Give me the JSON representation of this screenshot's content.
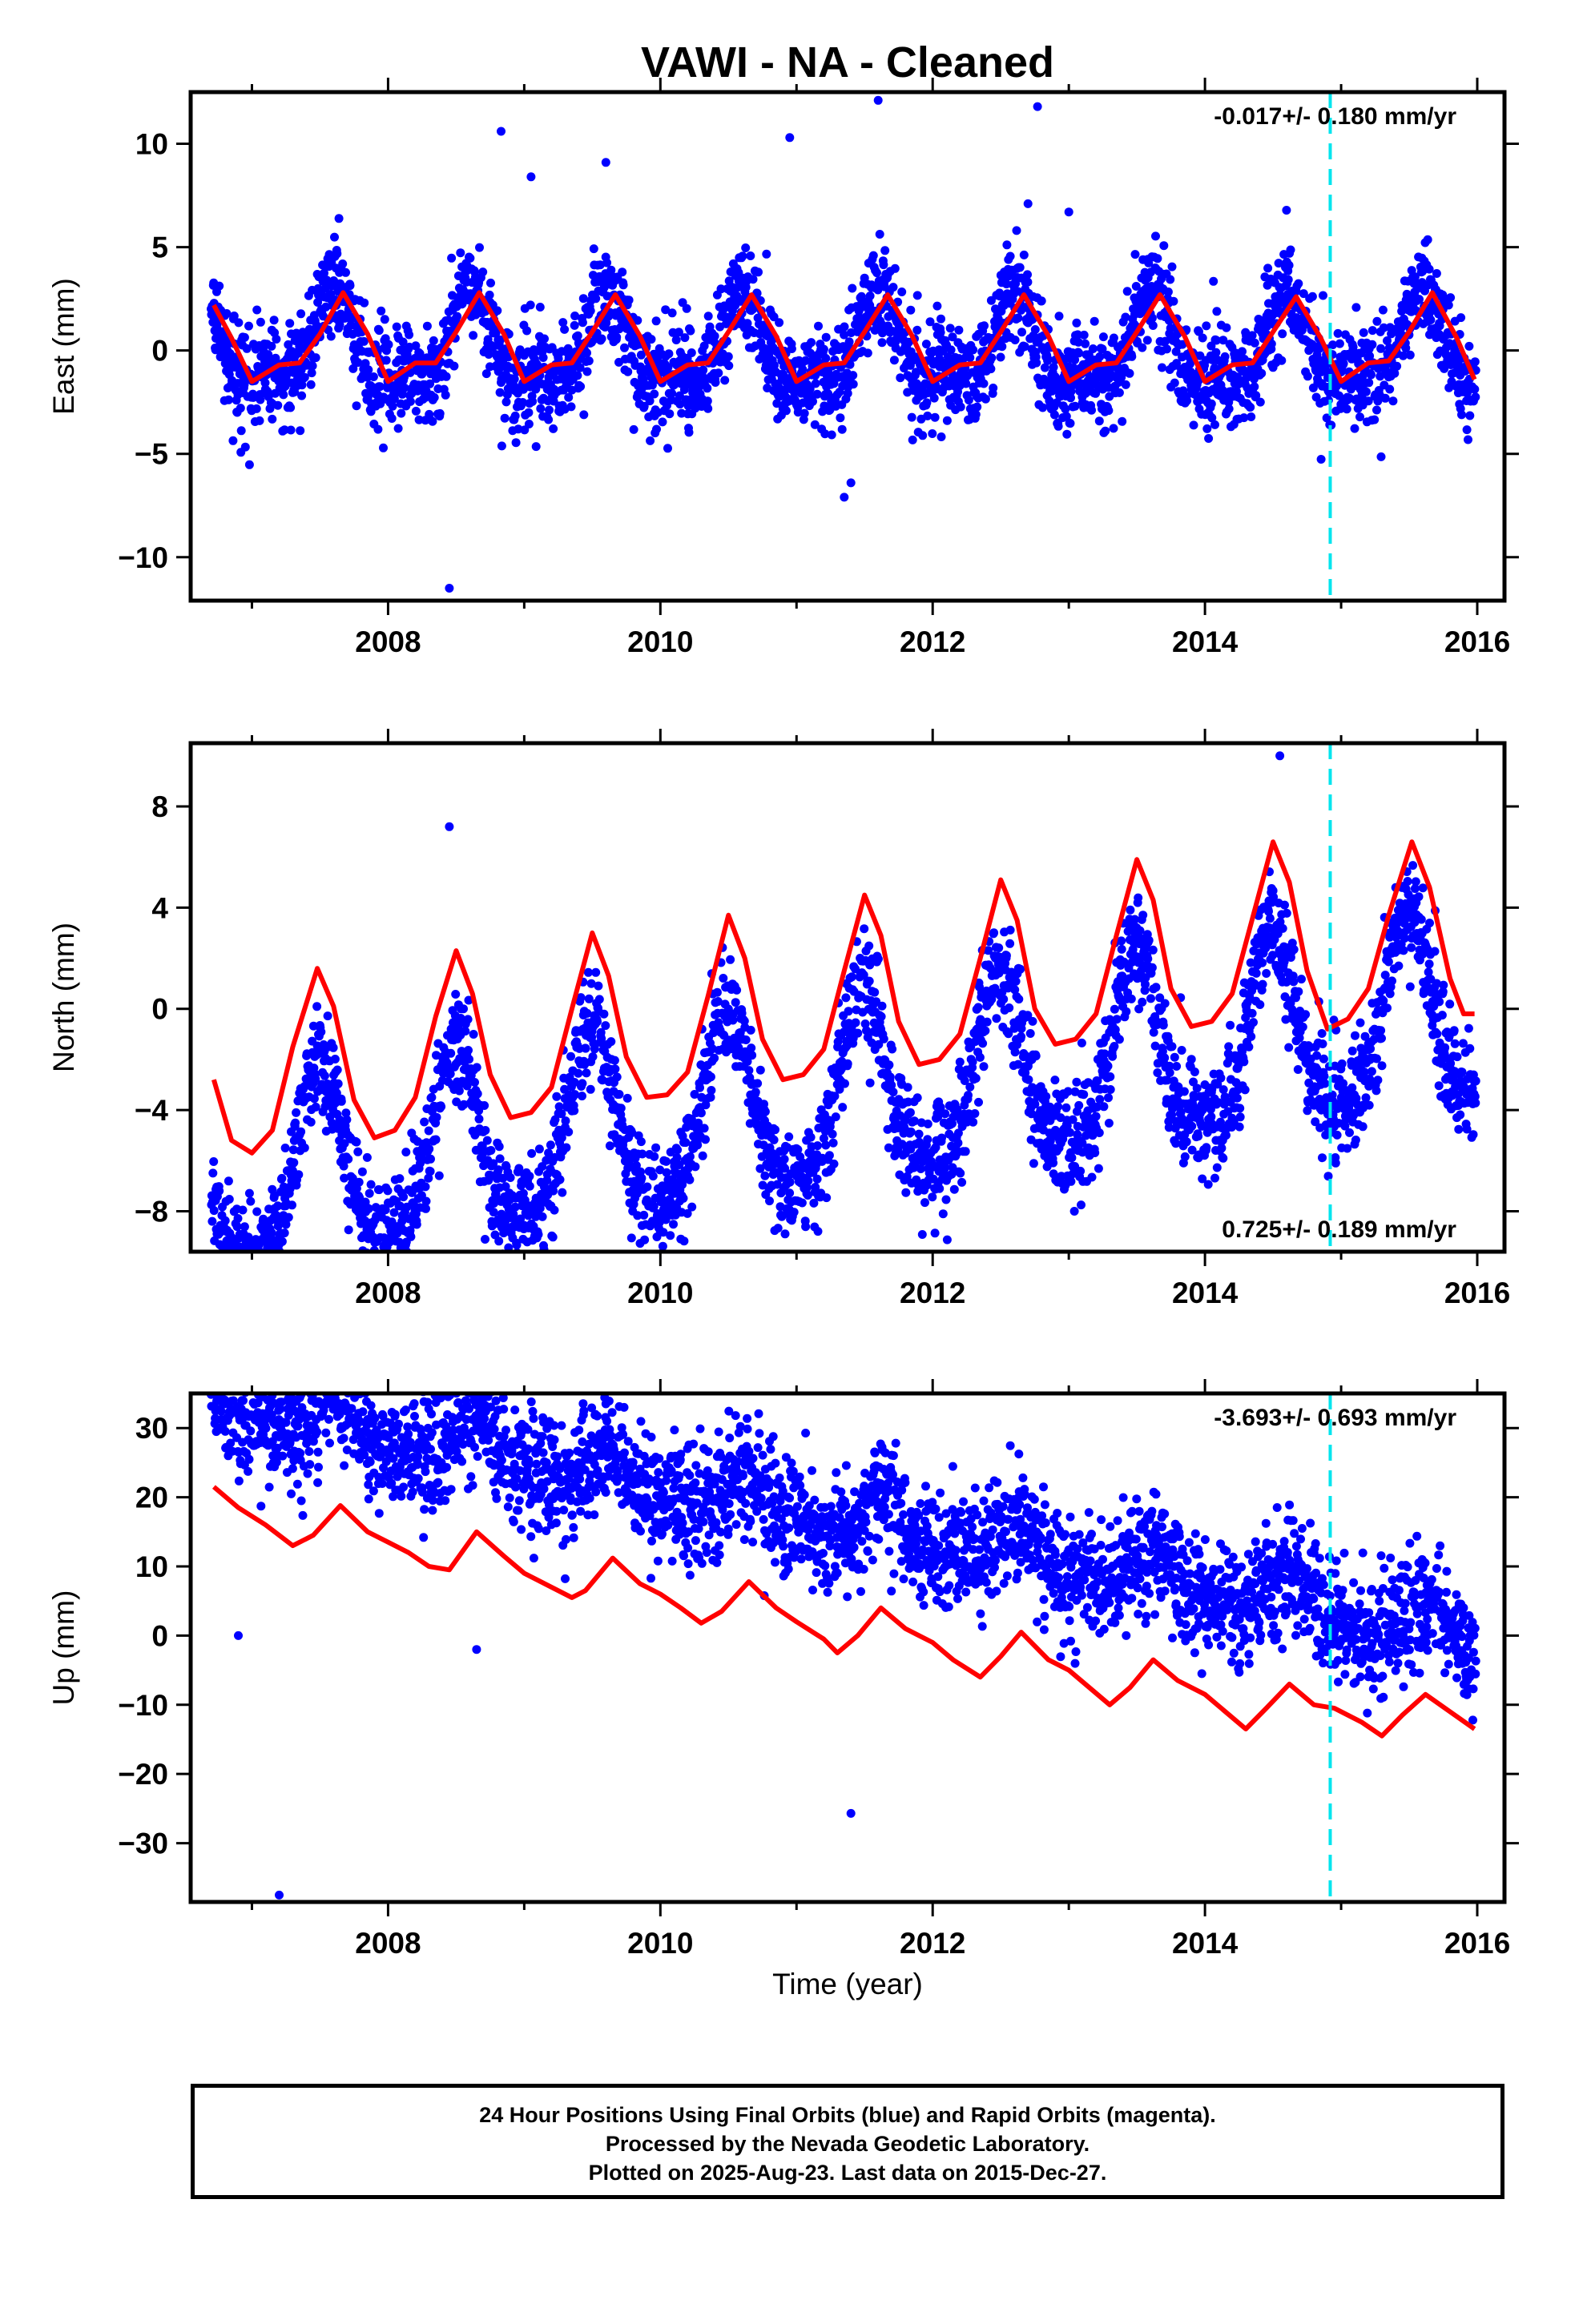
{
  "title": "VAWI  - NA - Cleaned",
  "xlabel": "Time (year)",
  "colors": {
    "points": "#0000ff",
    "fit": "#ff0000",
    "marker": "#00e5ee",
    "frame": "#000000"
  },
  "chart_data": [
    {
      "type": "scatter",
      "ylabel": "East (mm)",
      "velocity_label": "-0.017+/- 0.180 mm/yr",
      "xlim": [
        2006.55,
        2016.2
      ],
      "ylim": [
        -12.1,
        12.5
      ],
      "xticks": [
        2008,
        2010,
        2012,
        2014,
        2016
      ],
      "yticks": [
        -10,
        -5,
        0,
        5,
        10
      ],
      "marker_line_x": 2014.92,
      "series": [
        {
          "name": "24 Hour Positions Using Final Orbits (blue)",
          "style": "points",
          "start": 2006.7,
          "end": 2015.99,
          "trend": -0.017,
          "offset": 0.0,
          "amp_annual": 2.0,
          "amp_semi": 0.9,
          "phase_days": 220,
          "noise": 1.2,
          "outliers": [
            [
              2008.83,
              10.6
            ],
            [
              2009.05,
              8.4
            ],
            [
              2009.6,
              9.1
            ],
            [
              2010.95,
              10.3
            ],
            [
              2011.6,
              12.1
            ],
            [
              2012.77,
              11.8
            ],
            [
              2008.45,
              -11.5
            ],
            [
              2011.35,
              -7.1
            ],
            [
              2011.4,
              -6.4
            ],
            [
              2012.7,
              7.1
            ],
            [
              2013.0,
              6.7
            ]
          ]
        },
        {
          "name": "fit",
          "style": "line",
          "points": [
            [
              2006.72,
              2.2
            ],
            [
              2006.85,
              0.6
            ],
            [
              2007.0,
              -1.5
            ],
            [
              2007.2,
              -0.7
            ],
            [
              2007.35,
              -0.6
            ],
            [
              2007.5,
              0.8
            ],
            [
              2007.67,
              2.8
            ],
            [
              2007.85,
              0.8
            ],
            [
              2008.0,
              -1.5
            ],
            [
              2008.2,
              -0.6
            ],
            [
              2008.35,
              -0.6
            ],
            [
              2008.5,
              0.9
            ],
            [
              2008.67,
              2.8
            ],
            [
              2008.85,
              0.8
            ],
            [
              2009.0,
              -1.5
            ],
            [
              2009.2,
              -0.7
            ],
            [
              2009.35,
              -0.6
            ],
            [
              2009.5,
              0.9
            ],
            [
              2009.67,
              2.7
            ],
            [
              2009.85,
              0.7
            ],
            [
              2010.0,
              -1.5
            ],
            [
              2010.2,
              -0.7
            ],
            [
              2010.35,
              -0.6
            ],
            [
              2010.5,
              0.9
            ],
            [
              2010.67,
              2.7
            ],
            [
              2010.85,
              0.7
            ],
            [
              2011.0,
              -1.5
            ],
            [
              2011.2,
              -0.7
            ],
            [
              2011.35,
              -0.6
            ],
            [
              2011.5,
              0.9
            ],
            [
              2011.67,
              2.7
            ],
            [
              2011.85,
              0.7
            ],
            [
              2012.0,
              -1.5
            ],
            [
              2012.2,
              -0.7
            ],
            [
              2012.35,
              -0.6
            ],
            [
              2012.5,
              0.9
            ],
            [
              2012.67,
              2.7
            ],
            [
              2012.85,
              0.7
            ],
            [
              2013.0,
              -1.5
            ],
            [
              2013.2,
              -0.7
            ],
            [
              2013.35,
              -0.6
            ],
            [
              2013.5,
              0.9
            ],
            [
              2013.67,
              2.7
            ],
            [
              2013.85,
              0.7
            ],
            [
              2014.0,
              -1.5
            ],
            [
              2014.2,
              -0.7
            ],
            [
              2014.35,
              -0.6
            ],
            [
              2014.5,
              0.9
            ],
            [
              2014.67,
              2.6
            ],
            [
              2014.85,
              0.6
            ],
            [
              2015.0,
              -1.5
            ],
            [
              2015.2,
              -0.6
            ],
            [
              2015.35,
              -0.5
            ],
            [
              2015.5,
              0.9
            ],
            [
              2015.67,
              2.8
            ],
            [
              2015.85,
              0.6
            ],
            [
              2015.98,
              -1.4
            ]
          ]
        }
      ]
    },
    {
      "type": "scatter",
      "ylabel": "North (mm)",
      "velocity_label": "0.725+/- 0.189 mm/yr",
      "xlim": [
        2006.55,
        2016.2
      ],
      "ylim": [
        -9.6,
        10.5
      ],
      "xticks": [
        2008,
        2010,
        2012,
        2014,
        2016
      ],
      "yticks": [
        -8,
        -4,
        0,
        4,
        8
      ],
      "marker_line_x": 2014.92,
      "series": [
        {
          "name": "24 Hour Positions Using Final Orbits (blue)",
          "style": "points",
          "start": 2006.7,
          "end": 2015.99,
          "trend": 0.725,
          "offset": -3.7,
          "amp_annual": 3.6,
          "amp_semi": 0.8,
          "phase_days": 180,
          "noise": 1.1,
          "outliers": [
            [
              2010.15,
              -9.1
            ],
            [
              2010.1,
              -7.3
            ],
            [
              2008.45,
              7.2
            ],
            [
              2014.55,
              10.0
            ]
          ]
        },
        {
          "name": "fit",
          "style": "line",
          "points": [
            [
              2006.72,
              -2.8
            ],
            [
              2006.85,
              -5.2
            ],
            [
              2007.0,
              -5.7
            ],
            [
              2007.15,
              -4.8
            ],
            [
              2007.3,
              -1.5
            ],
            [
              2007.48,
              1.6
            ],
            [
              2007.6,
              0.1
            ],
            [
              2007.75,
              -3.6
            ],
            [
              2007.9,
              -5.1
            ],
            [
              2008.05,
              -4.8
            ],
            [
              2008.2,
              -3.5
            ],
            [
              2008.35,
              -0.3
            ],
            [
              2008.5,
              2.3
            ],
            [
              2008.62,
              0.6
            ],
            [
              2008.75,
              -2.6
            ],
            [
              2008.9,
              -4.3
            ],
            [
              2009.05,
              -4.1
            ],
            [
              2009.2,
              -3.1
            ],
            [
              2009.35,
              0.0
            ],
            [
              2009.5,
              3.0
            ],
            [
              2009.62,
              1.3
            ],
            [
              2009.75,
              -1.9
            ],
            [
              2009.9,
              -3.5
            ],
            [
              2010.05,
              -3.4
            ],
            [
              2010.2,
              -2.5
            ],
            [
              2010.35,
              0.5
            ],
            [
              2010.5,
              3.7
            ],
            [
              2010.62,
              2.0
            ],
            [
              2010.75,
              -1.2
            ],
            [
              2010.9,
              -2.8
            ],
            [
              2011.05,
              -2.6
            ],
            [
              2011.2,
              -1.6
            ],
            [
              2011.35,
              1.5
            ],
            [
              2011.5,
              4.5
            ],
            [
              2011.62,
              2.9
            ],
            [
              2011.75,
              -0.5
            ],
            [
              2011.9,
              -2.2
            ],
            [
              2012.05,
              -2.0
            ],
            [
              2012.2,
              -1.0
            ],
            [
              2012.35,
              2.0
            ],
            [
              2012.5,
              5.1
            ],
            [
              2012.62,
              3.5
            ],
            [
              2012.75,
              0.0
            ],
            [
              2012.9,
              -1.4
            ],
            [
              2013.05,
              -1.2
            ],
            [
              2013.2,
              -0.2
            ],
            [
              2013.35,
              2.9
            ],
            [
              2013.5,
              5.9
            ],
            [
              2013.62,
              4.3
            ],
            [
              2013.75,
              0.8
            ],
            [
              2013.9,
              -0.7
            ],
            [
              2014.05,
              -0.5
            ],
            [
              2014.2,
              0.6
            ],
            [
              2014.35,
              3.6
            ],
            [
              2014.5,
              6.6
            ],
            [
              2014.62,
              5.0
            ],
            [
              2014.75,
              1.5
            ],
            [
              2014.9,
              -0.8
            ],
            [
              2015.05,
              -0.4
            ],
            [
              2015.2,
              0.8
            ],
            [
              2015.35,
              3.7
            ],
            [
              2015.52,
              6.6
            ],
            [
              2015.65,
              4.8
            ],
            [
              2015.8,
              1.2
            ],
            [
              2015.9,
              -0.2
            ],
            [
              2015.98,
              -0.2
            ]
          ]
        }
      ]
    },
    {
      "type": "scatter",
      "ylabel": "Up (mm)",
      "velocity_label": "-3.693+/- 0.693 mm/yr",
      "xlim": [
        2006.55,
        2016.2
      ],
      "ylim": [
        -38.5,
        35.0
      ],
      "xticks": [
        2008,
        2010,
        2012,
        2014,
        2016
      ],
      "yticks": [
        -30,
        -20,
        -10,
        0,
        10,
        20,
        30
      ],
      "marker_line_x": 2014.92,
      "series": [
        {
          "name": "24 Hour Positions Using Final Orbits (blue)",
          "style": "points",
          "start": 2006.7,
          "end": 2015.99,
          "trend": -3.693,
          "offset": 17.0,
          "amp_annual": 3.0,
          "amp_semi": 1.2,
          "phase_days": 230,
          "noise": 4.2,
          "outliers": [
            [
              2006.8,
              33.5
            ],
            [
              2009.6,
              33.5
            ],
            [
              2007.2,
              -37.5
            ],
            [
              2011.4,
              -25.7
            ],
            [
              2006.9,
              0.0
            ],
            [
              2012.55,
              16.8
            ],
            [
              2015.6,
              10.5
            ],
            [
              2008.65,
              -2.0
            ]
          ]
        },
        {
          "name": "fit",
          "style": "line",
          "points": [
            [
              2006.72,
              21.5
            ],
            [
              2006.9,
              18.5
            ],
            [
              2007.1,
              16.0
            ],
            [
              2007.3,
              13.0
            ],
            [
              2007.45,
              14.5
            ],
            [
              2007.65,
              18.8
            ],
            [
              2007.85,
              15.0
            ],
            [
              2008.0,
              13.5
            ],
            [
              2008.15,
              12.0
            ],
            [
              2008.3,
              10.0
            ],
            [
              2008.45,
              9.5
            ],
            [
              2008.65,
              15.0
            ],
            [
              2008.85,
              11.5
            ],
            [
              2009.0,
              9.0
            ],
            [
              2009.2,
              7.0
            ],
            [
              2009.35,
              5.5
            ],
            [
              2009.45,
              6.5
            ],
            [
              2009.65,
              11.2
            ],
            [
              2009.85,
              7.5
            ],
            [
              2010.0,
              6.0
            ],
            [
              2010.15,
              4.0
            ],
            [
              2010.3,
              1.8
            ],
            [
              2010.45,
              3.5
            ],
            [
              2010.65,
              7.8
            ],
            [
              2010.85,
              4.0
            ],
            [
              2011.0,
              2.0
            ],
            [
              2011.2,
              -0.5
            ],
            [
              2011.3,
              -2.5
            ],
            [
              2011.45,
              0.0
            ],
            [
              2011.62,
              4.0
            ],
            [
              2011.8,
              1.0
            ],
            [
              2012.0,
              -1.0
            ],
            [
              2012.15,
              -3.5
            ],
            [
              2012.35,
              -6.0
            ],
            [
              2012.5,
              -3.0
            ],
            [
              2012.65,
              0.5
            ],
            [
              2012.85,
              -3.5
            ],
            [
              2013.0,
              -5.0
            ],
            [
              2013.15,
              -7.5
            ],
            [
              2013.3,
              -10.0
            ],
            [
              2013.45,
              -7.5
            ],
            [
              2013.62,
              -3.5
            ],
            [
              2013.8,
              -6.5
            ],
            [
              2014.0,
              -8.5
            ],
            [
              2014.15,
              -11.0
            ],
            [
              2014.3,
              -13.5
            ],
            [
              2014.45,
              -10.5
            ],
            [
              2014.62,
              -7.0
            ],
            [
              2014.8,
              -10.0
            ],
            [
              2014.95,
              -10.5
            ],
            [
              2015.15,
              -12.5
            ],
            [
              2015.3,
              -14.5
            ],
            [
              2015.45,
              -11.5
            ],
            [
              2015.62,
              -8.5
            ],
            [
              2015.8,
              -11.0
            ],
            [
              2015.98,
              -13.5
            ]
          ]
        }
      ]
    }
  ],
  "footer": {
    "line1": "24 Hour Positions Using Final Orbits (blue) and Rapid Orbits (magenta).",
    "line2": "Processed by the Nevada Geodetic Laboratory.",
    "line3": "Plotted on 2025-Aug-23. Last data on 2015-Dec-27."
  }
}
